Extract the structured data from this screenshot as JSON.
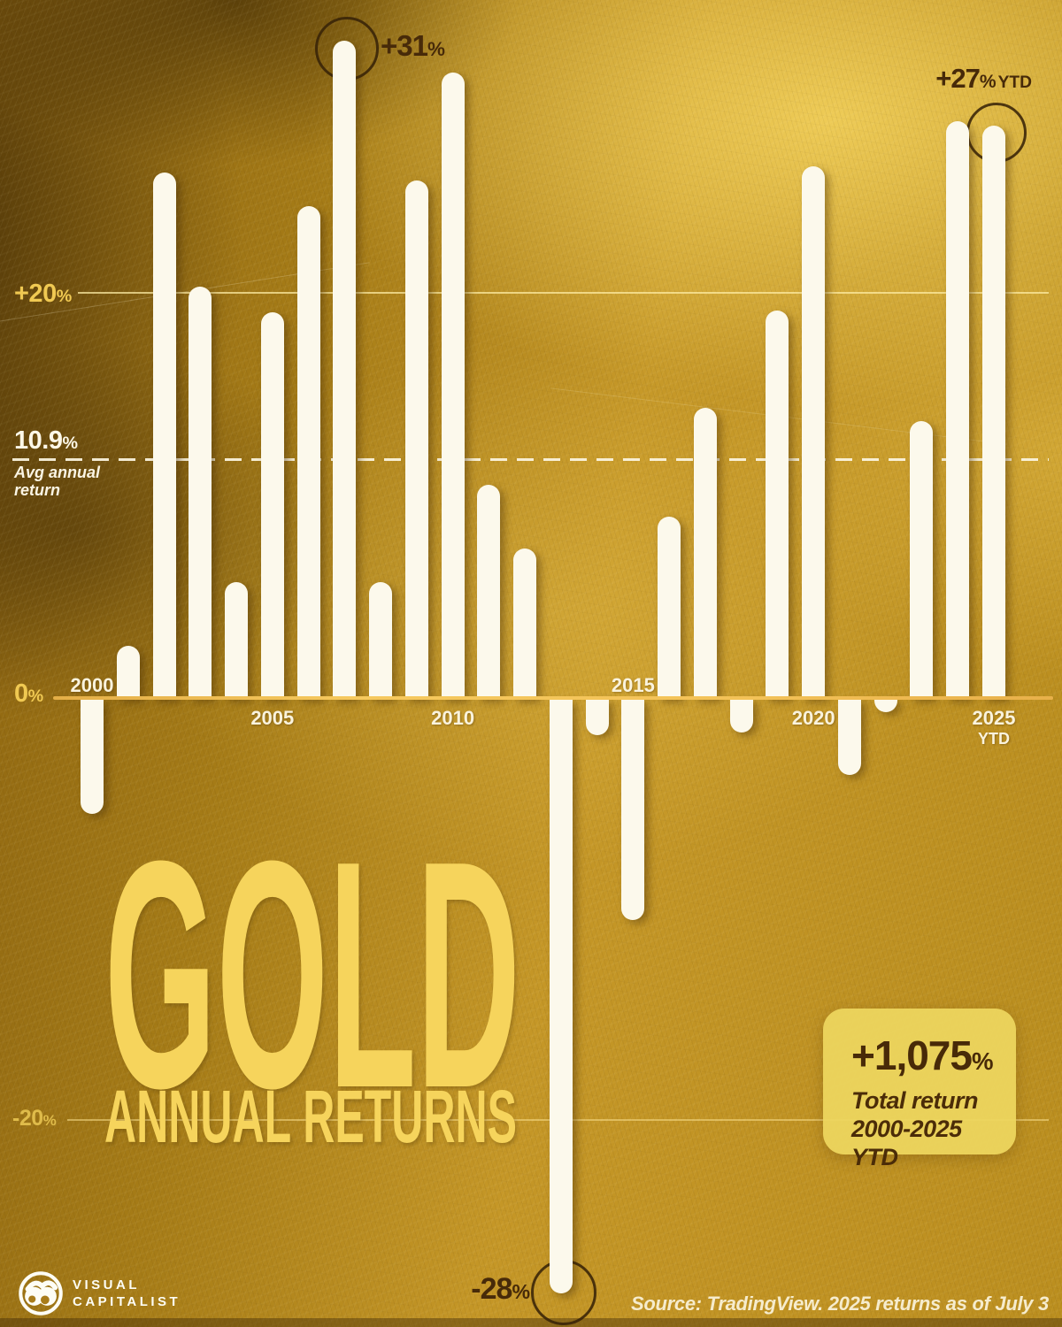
{
  "colors": {
    "bar": "#fcf9ec",
    "background_gold": "#b08423",
    "axis_line": "#f2bd55",
    "gold_label": "#f0c952",
    "cream_label": "#faf3dd",
    "dark_annotation": "#472a09",
    "title_yellow": "#f6d45c",
    "badge_bg": "#ecd55e"
  },
  "chart_data": {
    "type": "bar",
    "title": "GOLD ANNUAL RETURNS",
    "unit": "%",
    "categories": [
      "2000",
      "2001",
      "2002",
      "2003",
      "2004",
      "2005",
      "2006",
      "2007",
      "2008",
      "2009",
      "2010",
      "2011",
      "2012",
      "2013",
      "2014",
      "2015",
      "2016",
      "2017",
      "2018",
      "2019",
      "2020",
      "2021",
      "2022",
      "2023",
      "2024",
      "2025 YTD"
    ],
    "values": [
      -5.4,
      2.5,
      24.8,
      19.4,
      5.5,
      18.2,
      23.2,
      31,
      5.5,
      24.4,
      29.5,
      10.1,
      7.1,
      -28,
      -1.7,
      -10.4,
      8.6,
      13.7,
      -1.6,
      18.3,
      25.1,
      -3.6,
      -0.3,
      13.1,
      27.2,
      27
    ],
    "ylim": [
      -30,
      33
    ],
    "grid": "horizontal-lines at +20%, 0%, -20%; dashed avg line",
    "gridlines": [
      {
        "value": 20,
        "label": "+20",
        "pct": "%"
      },
      {
        "value": 0,
        "label": "0",
        "pct": "%"
      },
      {
        "value": -20,
        "label": "-20",
        "pct": "%"
      }
    ],
    "avg_line": {
      "value": 10.9,
      "label": "10.9",
      "pct": "%",
      "caption_line1": "Avg annual",
      "caption_line2": "return"
    },
    "x_ticks": [
      {
        "index": 0,
        "label": "2000"
      },
      {
        "index": 5,
        "label": "2005"
      },
      {
        "index": 10,
        "label": "2010"
      },
      {
        "index": 15,
        "label": "2015"
      },
      {
        "index": 20,
        "label": "2020"
      },
      {
        "index": 25,
        "label": "2025",
        "sub": "YTD"
      }
    ],
    "annotations": [
      {
        "index": 7,
        "value": "+31",
        "pct": "%",
        "suffix": ""
      },
      {
        "index": 25,
        "value": "+27",
        "pct": "%",
        "suffix": "YTD"
      },
      {
        "index": 13,
        "value": "-28",
        "pct": "%",
        "suffix": ""
      }
    ]
  },
  "title": {
    "line1": "GOLD",
    "line2": "ANNUAL RETURNS"
  },
  "badge": {
    "value": "+1,075",
    "pct": "%",
    "caption_line1": "Total return",
    "caption_line2": "2000-2025 YTD"
  },
  "footer": {
    "logo_line1": "VISUAL",
    "logo_line2": "CAPITALIST",
    "source": "Source: TradingView. 2025 returns as of July 3"
  }
}
